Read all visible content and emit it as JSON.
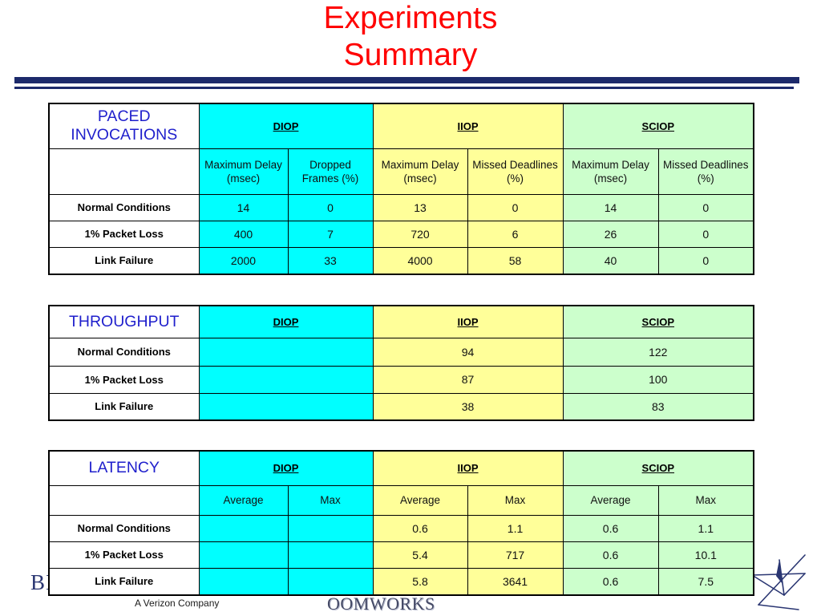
{
  "slide": {
    "title_line1": "Experiments",
    "title_line2": "Summary"
  },
  "colors": {
    "title": "#ff0000",
    "section_label": "#1f1fcc",
    "diop_fill": "#00ffff",
    "iiop_fill": "#ffff99",
    "sciop_fill": "#ccffcc",
    "rule": "#1c2a6b",
    "logo": "#2a3672"
  },
  "paced_invocations": {
    "label": "PACED INVOCATIONS",
    "groups": {
      "diop": "DIOP",
      "iiop": "IIOP",
      "sciop": "SCIOP"
    },
    "metrics": {
      "diop": [
        "Maximum Delay (msec)",
        "Dropped Frames (%)"
      ],
      "iiop": [
        "Maximum Delay (msec)",
        "Missed Deadlines (%)"
      ],
      "sciop": [
        "Maximum Delay (msec)",
        "Missed Deadlines (%)"
      ]
    },
    "rows": [
      {
        "condition": "Normal Conditions",
        "diop": [
          "14",
          "0"
        ],
        "iiop": [
          "13",
          "0"
        ],
        "sciop": [
          "14",
          "0"
        ]
      },
      {
        "condition": "1% Packet Loss",
        "diop": [
          "400",
          "7"
        ],
        "iiop": [
          "720",
          "6"
        ],
        "sciop": [
          "26",
          "0"
        ]
      },
      {
        "condition": "Link Failure",
        "diop": [
          "2000",
          "33"
        ],
        "iiop": [
          "4000",
          "58"
        ],
        "sciop": [
          "40",
          "0"
        ]
      }
    ]
  },
  "throughput": {
    "label": "THROUGHPUT",
    "groups": {
      "diop": "DIOP",
      "iiop": "IIOP",
      "sciop": "SCIOP"
    },
    "rows": [
      {
        "condition": "Normal Conditions",
        "iiop": "94",
        "sciop": "122"
      },
      {
        "condition": "1% Packet Loss",
        "iiop": "87",
        "sciop": "100"
      },
      {
        "condition": "Link Failure",
        "iiop": "38",
        "sciop": "83"
      }
    ]
  },
  "latency": {
    "label": "LATENCY",
    "groups": {
      "diop": "DIOP",
      "iiop": "IIOP",
      "sciop": "SCIOP"
    },
    "metrics": {
      "diop": [
        "Average",
        "Max"
      ],
      "iiop": [
        "Average",
        "Max"
      ],
      "sciop": [
        "Average",
        "Max"
      ]
    },
    "rows": [
      {
        "condition": "Normal Conditions",
        "iiop": [
          "0.6",
          "1.1"
        ],
        "sciop": [
          "0.6",
          "1.1"
        ]
      },
      {
        "condition": "1% Packet Loss",
        "iiop": [
          "5.4",
          "717"
        ],
        "sciop": [
          "0.6",
          "10.1"
        ]
      },
      {
        "condition": "Link Failure",
        "iiop": [
          "5.8",
          "3641"
        ],
        "sciop": [
          "0.6",
          "7.5"
        ]
      }
    ]
  },
  "footer": {
    "left_logo_text": "BI",
    "tagline": "A Verizon Company",
    "wordmark": "OOMWORKS",
    "right_logo_icon": "star-logo"
  }
}
